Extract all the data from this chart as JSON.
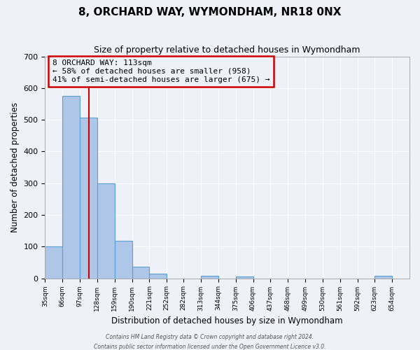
{
  "title": "8, ORCHARD WAY, WYMONDHAM, NR18 0NX",
  "subtitle": "Size of property relative to detached houses in Wymondham",
  "xlabel": "Distribution of detached houses by size in Wymondham",
  "ylabel": "Number of detached properties",
  "bar_edges": [
    35,
    66,
    97,
    128,
    159,
    190,
    221,
    252,
    282,
    313,
    344,
    375,
    406,
    437,
    468,
    499,
    530,
    561,
    592,
    623,
    654
  ],
  "bar_heights": [
    100,
    575,
    507,
    300,
    118,
    37,
    14,
    0,
    0,
    8,
    0,
    6,
    0,
    0,
    0,
    0,
    0,
    0,
    0,
    7
  ],
  "bar_color": "#aec6e8",
  "bar_edge_color": "#5a9fd4",
  "property_line_x": 113,
  "property_line_color": "#cc0000",
  "ylim": [
    0,
    700
  ],
  "yticks": [
    0,
    100,
    200,
    300,
    400,
    500,
    600,
    700
  ],
  "annotation_line1": "8 ORCHARD WAY: 113sqm",
  "annotation_line2": "← 58% of detached houses are smaller (958)",
  "annotation_line3": "41% of semi-detached houses are larger (675) →",
  "annotation_box_color": "#cc0000",
  "footnote1": "Contains HM Land Registry data © Crown copyright and database right 2024.",
  "footnote2": "Contains public sector information licensed under the Open Government Licence v3.0.",
  "background_color": "#eef2f8",
  "grid_color": "#ffffff",
  "tick_labels": [
    "35sqm",
    "66sqm",
    "97sqm",
    "128sqm",
    "159sqm",
    "190sqm",
    "221sqm",
    "252sqm",
    "282sqm",
    "313sqm",
    "344sqm",
    "375sqm",
    "406sqm",
    "437sqm",
    "468sqm",
    "499sqm",
    "530sqm",
    "561sqm",
    "592sqm",
    "623sqm",
    "654sqm"
  ]
}
